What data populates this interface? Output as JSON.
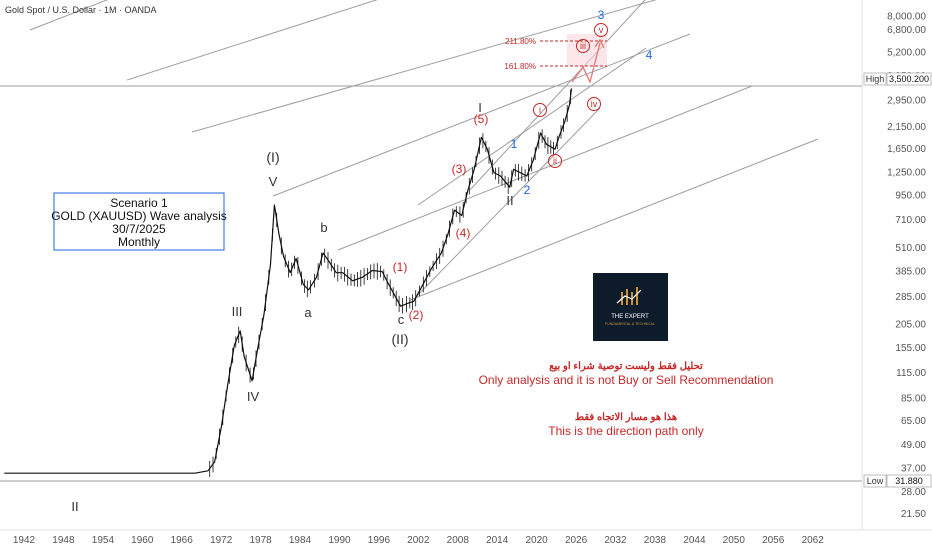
{
  "header": {
    "title": "Gold Spot / U.S. Dollar · 1M · OANDA"
  },
  "info_box": {
    "line1": "Scenario 1",
    "line2": "GOLD (XAUUSD) Wave analysis",
    "line3": "30/7/2025",
    "line4": "Monthly"
  },
  "logo": {
    "text": "THE EXPERT",
    "subtext": "FUNDAMENTAL & TECHNICAL"
  },
  "disclaimer": {
    "arabic1": "تحليل فقط وليست توصية شراء او بيع",
    "english1": "Only analysis and it is not Buy or Sell Recommendation",
    "arabic2": "هذا هو مسار الاتجاه فقط",
    "english2": "This is the direction path only"
  },
  "colors": {
    "bearish_red": "#c62828",
    "wave_blue": "#1e63e9",
    "price_black": "#111111",
    "channel_gray": "#9e9e9e",
    "box_border": "#1e63e9",
    "logo_bg": "#0d1b2a",
    "logo_accent": "#c9933a"
  },
  "chart_data": {
    "type": "line",
    "symbol": "XAUUSD",
    "timeframe": "1M",
    "y_scale": "log",
    "ylim": [
      18,
      10000
    ],
    "xlim": [
      1939,
      2072
    ],
    "x_ticks": [
      "1942",
      "1948",
      "1954",
      "1960",
      "1966",
      "1972",
      "1978",
      "1984",
      "1990",
      "1996",
      "2002",
      "2008",
      "2014",
      "2020",
      "2026",
      "2032",
      "2038",
      "2044",
      "2050",
      "2056",
      "2062"
    ],
    "y_ticks": [
      "8,000.00",
      "6,800.00",
      "5,200.00",
      "3,950.00",
      "2,950.00",
      "2,150.00",
      "1,650.00",
      "1,250.00",
      "950.00",
      "710.00",
      "510.00",
      "385.00",
      "285.00",
      "205.00",
      "155.00",
      "115.00",
      "85.00",
      "65.00",
      "49.00",
      "37.00",
      "28.00",
      "21.50"
    ],
    "high": {
      "label": "High",
      "value": "3,500.200"
    },
    "low": {
      "label": "Low",
      "value": "31.880"
    },
    "series": [
      {
        "x": [
          1939,
          1968,
          1970,
          1971,
          1972,
          1973,
          1974,
          1974.9,
          1975.5,
          1976.7,
          1977.5,
          1978.5,
          1979.5,
          1980.1,
          1980.8,
          1981.5,
          1982.5,
          1983.4,
          1984.5,
          1985.3,
          1986.5,
          1987.5,
          1988.5,
          1989.5,
          1990.5,
          1992,
          1993.5,
          1995,
          1996.5,
          1997.5,
          1999.3,
          2000.5,
          2001.3,
          2002.5,
          2004,
          2005.5,
          2006.5,
          2007.5,
          2008.6,
          2009.5,
          2010.5,
          2011.6,
          2012.5,
          2013.5,
          2014.5,
          2015.9,
          2016.5,
          2017.5,
          2018.5,
          2019.5,
          2020.6,
          2021.5,
          2022.8,
          2023.5,
          2024.3,
          2025.0,
          2025.3
        ],
        "y": [
          35,
          35,
          36,
          40,
          60,
          100,
          160,
          190,
          140,
          105,
          150,
          230,
          420,
          850,
          600,
          460,
          380,
          450,
          330,
          310,
          360,
          480,
          430,
          380,
          380,
          345,
          360,
          390,
          385,
          330,
          255,
          265,
          270,
          320,
          400,
          480,
          600,
          800,
          750,
          1000,
          1300,
          1900,
          1650,
          1250,
          1200,
          1050,
          1300,
          1250,
          1200,
          1450,
          2000,
          1750,
          1650,
          1950,
          2300,
          2800,
          3400
        ]
      }
    ],
    "annotations": [
      {
        "text": "I",
        "color": "dark"
      },
      {
        "text": "II",
        "color": "dark"
      },
      {
        "text": "III",
        "color": "dark"
      },
      {
        "text": "IV",
        "color": "dark"
      },
      {
        "text": "V",
        "color": "dark"
      },
      {
        "text": "(I)",
        "color": "dark"
      },
      {
        "text": "(II)",
        "color": "dark"
      },
      {
        "text": "a",
        "color": "dark"
      },
      {
        "text": "b",
        "color": "dark"
      },
      {
        "text": "c",
        "color": "dark"
      },
      {
        "text": "(1)",
        "color": "red"
      },
      {
        "text": "(2)",
        "color": "red"
      },
      {
        "text": "(3)",
        "color": "red"
      },
      {
        "text": "(4)",
        "color": "red"
      },
      {
        "text": "(5)",
        "color": "red"
      },
      {
        "text": "1",
        "color": "blue"
      },
      {
        "text": "2",
        "color": "blue"
      },
      {
        "text": "3",
        "color": "blue"
      },
      {
        "text": "4",
        "color": "blue"
      },
      {
        "text": "i",
        "color": "red"
      },
      {
        "text": "ii",
        "color": "red"
      },
      {
        "text": "iii",
        "color": "red"
      },
      {
        "text": "iv",
        "color": "red"
      },
      {
        "text": "v",
        "color": "red"
      }
    ],
    "fib_levels": [
      {
        "label": "211.80%",
        "value": 5700
      },
      {
        "label": "161.80%",
        "value": 4300
      }
    ]
  }
}
